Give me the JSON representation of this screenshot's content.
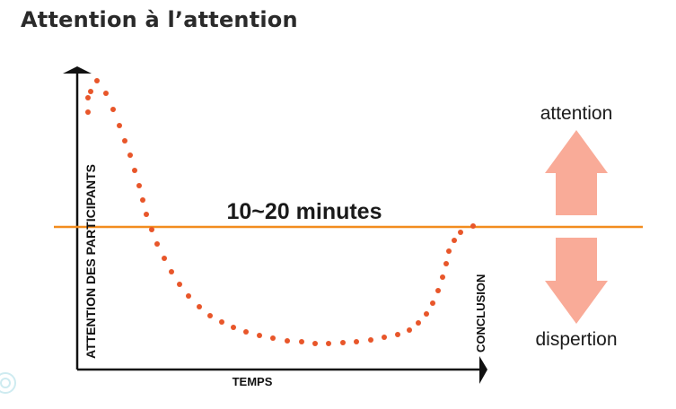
{
  "title": "Attention à l’attention",
  "center_label": "10~20 minutes",
  "y_axis_label": "ATTENTION DES PARTICIPANTS",
  "x_axis_label": "TEMPS",
  "end_label": "CONCLUSION",
  "up_label": "attention",
  "down_label": "dispertion",
  "colors": {
    "dots": "#e8562a",
    "line": "#f28c1e",
    "arrows": "#f9ab98",
    "axis": "#111111",
    "text": "#1a1a1a"
  },
  "curve": {
    "description_points": "attention over time: high at start, drops below threshold after 10-20 minutes, rises again at conclusion",
    "t": [
      0,
      0.05,
      0.1,
      0.15,
      0.2,
      0.25,
      0.3,
      0.35,
      0.4,
      0.45,
      0.5,
      0.55,
      0.6,
      0.65,
      0.7,
      0.75,
      0.8,
      0.85,
      0.9,
      0.95,
      1.0
    ],
    "level": [
      0.62,
      0.98,
      0.72,
      0.42,
      0.05,
      -0.22,
      -0.42,
      -0.56,
      -0.66,
      -0.73,
      -0.77,
      -0.8,
      -0.81,
      -0.82,
      -0.81,
      -0.78,
      -0.72,
      -0.6,
      -0.4,
      -0.12,
      0.0
    ]
  }
}
